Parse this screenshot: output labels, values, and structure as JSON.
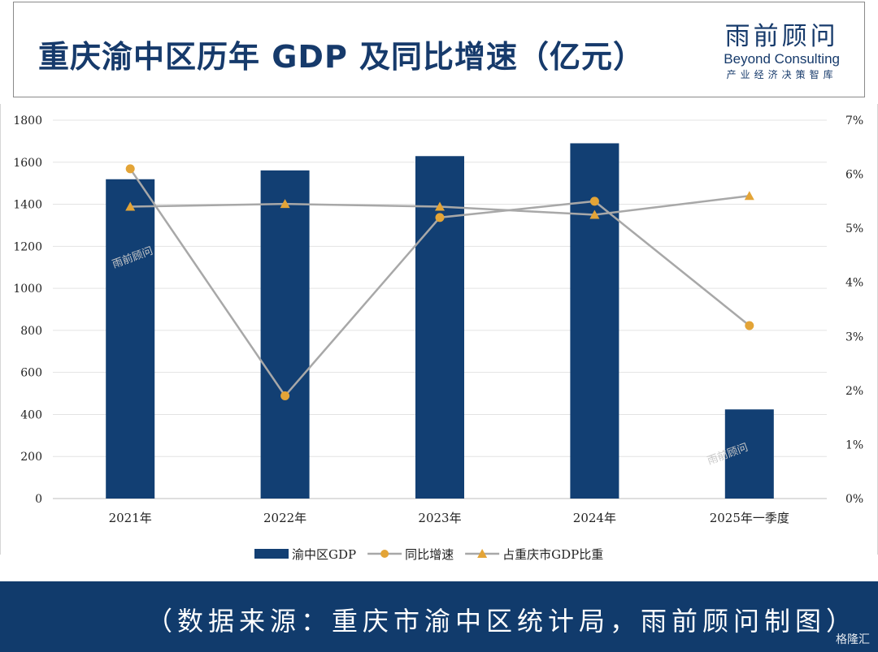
{
  "header": {
    "title": "重庆渝中区历年 GDP 及同比增速（亿元）",
    "brand_cn": "雨前顾问",
    "brand_en": "Beyond Consulting",
    "brand_sub": "产业经济决策智库"
  },
  "footer": {
    "source": "（数据来源：重庆市渝中区统计局，雨前顾问制图）",
    "corner_logo": "格隆汇"
  },
  "watermark": "雨前顾问",
  "colors": {
    "bar": "#123f73",
    "growth": "#e3a437",
    "share": "#e3a437",
    "line": "#a8a8a8"
  },
  "chart_data": {
    "type": "bar",
    "categories": [
      "2021年",
      "2022年",
      "2023年",
      "2024年",
      "2025年一季度"
    ],
    "series": [
      {
        "name": "渝中区GDP",
        "type": "bar",
        "axis": "left",
        "marker": "rect",
        "values": [
          1519,
          1561,
          1629,
          1690,
          424
        ]
      },
      {
        "name": "同比增速",
        "type": "line",
        "axis": "right",
        "marker": "circle",
        "values": [
          6.1,
          1.9,
          5.2,
          5.5,
          3.2
        ]
      },
      {
        "name": "占重庆市GDP比重",
        "type": "line",
        "axis": "right",
        "marker": "triangle",
        "values": [
          5.4,
          5.45,
          5.4,
          5.25,
          5.6
        ]
      }
    ],
    "ylim": [
      0,
      1800
    ],
    "yticks": [
      "0",
      "200",
      "400",
      "600",
      "800",
      "1000",
      "1200",
      "1400",
      "1600",
      "1800"
    ],
    "y2lim": [
      0,
      7
    ],
    "y2ticks": [
      "0%",
      "1%",
      "2%",
      "3%",
      "4%",
      "5%",
      "6%",
      "7%"
    ],
    "grid": true,
    "legend_position": "bottom"
  }
}
